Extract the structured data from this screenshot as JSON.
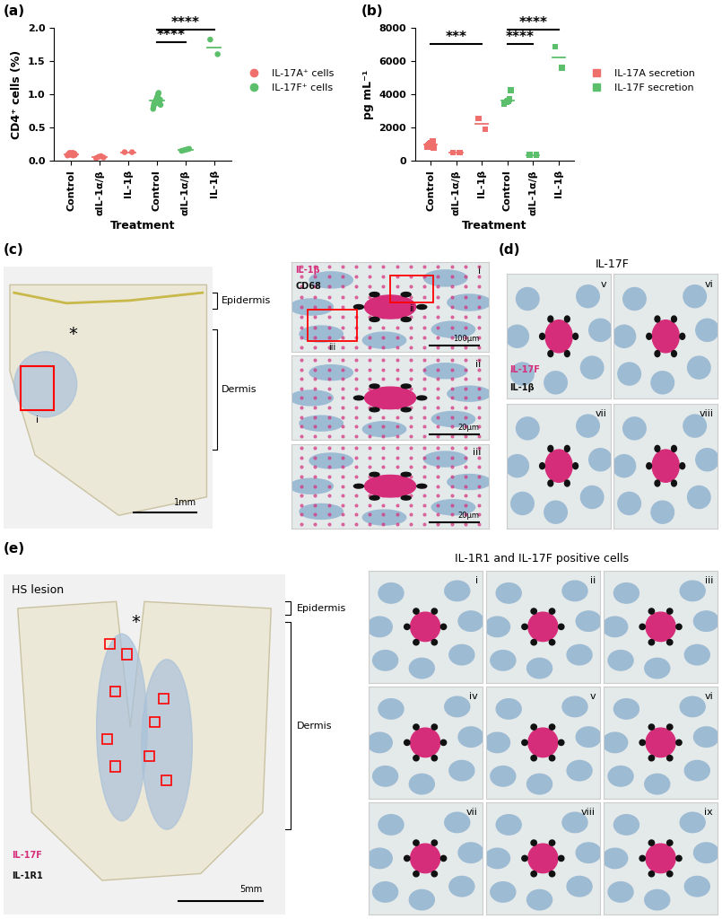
{
  "chart_data": [
    {
      "type": "scatter",
      "label": "(a)",
      "x_label": "Treatment",
      "y_label": "CD4⁺ cells (%)",
      "categories": [
        "Control",
        "αIL-1α/β",
        "IL-1β",
        "Control",
        "αIL-1α/β",
        "IL-1β"
      ],
      "series": [
        {
          "name": "IL-17A⁺ cells",
          "color": "#ef6f6c",
          "marker": "o",
          "values": [
            [
              0.08,
              0.09,
              0.1,
              0.11,
              0.12,
              0.1,
              0.09,
              0.11,
              0.1,
              0.12,
              0.08,
              0.1,
              0.11,
              0.09
            ],
            [
              0.04,
              0.06,
              0.07,
              0.05
            ],
            [
              0.13,
              0.13
            ],
            null,
            null,
            null
          ],
          "means": [
            0.1,
            0.055,
            0.13,
            null,
            null,
            null
          ]
        },
        {
          "name": "IL-17F⁺ cells",
          "color": "#5cbf6b",
          "marker": "o",
          "values": [
            null,
            null,
            null,
            [
              0.78,
              0.82,
              0.85,
              0.87,
              0.88,
              0.9,
              0.91,
              0.93,
              0.95,
              0.97,
              1.0,
              1.02,
              0.86,
              0.89,
              0.92,
              0.84
            ],
            [
              0.15,
              0.16,
              0.17,
              0.18
            ],
            [
              1.82,
              1.6
            ]
          ],
          "means": [
            null,
            null,
            null,
            0.9,
            0.165,
            1.7
          ]
        }
      ],
      "ylim": [
        0,
        2.0
      ],
      "yticks": [
        {
          "value": 0,
          "label": "0.0"
        },
        {
          "value": 0.5,
          "label": "0.5"
        },
        {
          "value": 1.0,
          "label": "1.0"
        },
        {
          "value": 1.5,
          "label": "1.5"
        },
        {
          "value": 2.0,
          "label": "2.0"
        }
      ],
      "legend": "right",
      "annotations": [
        {
          "from": 3,
          "to": 4,
          "y": 1.78,
          "text": "****"
        },
        {
          "from": 3,
          "to": 5,
          "y": 1.97,
          "text": "****"
        }
      ]
    },
    {
      "type": "scatter",
      "label": "(b)",
      "x_label": "Treatment",
      "y_label": "pg mL⁻¹",
      "categories": [
        "Control",
        "αIL-1α/β",
        "IL-1β",
        "Control",
        "αIL-1α/β",
        "IL-1β"
      ],
      "series": [
        {
          "name": "IL-17A secretion",
          "color": "#ef6f6c",
          "marker": "s",
          "values": [
            [
              850,
              900,
              950,
              1000,
              1050,
              1100,
              1200,
              800
            ],
            [
              500,
              500
            ],
            [
              2550,
              1900
            ],
            null,
            null,
            null
          ],
          "means": [
            1000,
            500,
            2200,
            null,
            null,
            null
          ]
        },
        {
          "name": "IL-17F secretion",
          "color": "#5cbf6b",
          "marker": "s",
          "values": [
            null,
            null,
            null,
            [
              3400,
              3500,
              3550,
              3600,
              3700,
              4250
            ],
            [
              350,
              350
            ],
            [
              6850,
              5600
            ]
          ],
          "means": [
            null,
            null,
            null,
            3600,
            350,
            6200
          ]
        }
      ],
      "ylim": [
        0,
        8000
      ],
      "yticks": [
        0,
        2000,
        4000,
        6000,
        8000
      ],
      "legend": "right",
      "annotations": [
        {
          "from": 0,
          "to": 2,
          "y": 7000,
          "text": "***"
        },
        {
          "from": 3,
          "to": 4,
          "y": 7000,
          "text": "****"
        },
        {
          "from": 3,
          "to": 5,
          "y": 7900,
          "text": "****"
        }
      ]
    }
  ],
  "image_panels": [
    {
      "label": "(c)",
      "overview": {
        "labels": [
          "Epidermis",
          "Dermis"
        ],
        "mark": "*",
        "scale_bar": "1mm",
        "regions": [
          "i"
        ]
      },
      "stains": [
        {
          "name": "IL-1β",
          "color": "#d62d7b"
        },
        {
          "name": "CD68",
          "color": "#111111"
        }
      ],
      "insets": [
        {
          "label": "i",
          "scale_bar": "100µm",
          "regions": [
            "ii",
            "iii"
          ]
        },
        {
          "label": "ii",
          "scale_bar": "20µm"
        },
        {
          "label": "iii",
          "scale_bar": "20µm"
        }
      ]
    },
    {
      "label": "(d)",
      "title": "IL-17F",
      "stains": [
        {
          "name": "IL-17F",
          "color": "#d62d7b"
        },
        {
          "name": "IL-1β",
          "color": "#111111"
        }
      ],
      "insets": [
        {
          "label": "v"
        },
        {
          "label": "vi"
        },
        {
          "label": "vii"
        },
        {
          "label": "viii"
        }
      ]
    },
    {
      "label": "(e)",
      "title": "IL-1R1 and IL-17F positive cells",
      "overview": {
        "title": "HS lesion",
        "labels": [
          "Epidermis",
          "Dermis"
        ],
        "mark": "*",
        "scale_bar": "5mm"
      },
      "stains": [
        {
          "name": "IL-17F",
          "color": "#d62d7b"
        },
        {
          "name": "IL-1R1",
          "color": "#111111"
        }
      ],
      "insets": [
        {
          "label": "i"
        },
        {
          "label": "ii"
        },
        {
          "label": "iii"
        },
        {
          "label": "iv"
        },
        {
          "label": "v"
        },
        {
          "label": "vi"
        },
        {
          "label": "vii"
        },
        {
          "label": "viii"
        },
        {
          "label": "ix"
        }
      ]
    }
  ]
}
